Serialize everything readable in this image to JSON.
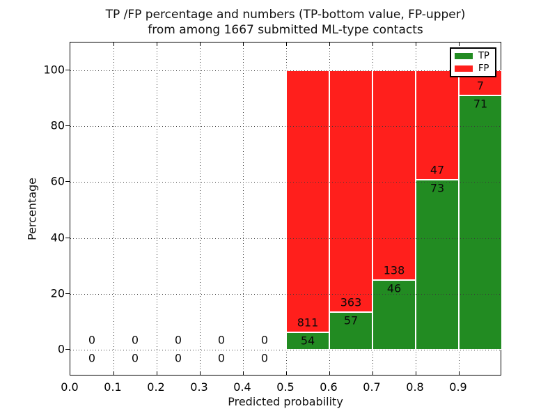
{
  "title": {
    "line1": "TP /FP percentage and numbers (TP-bottom value, FP-upper)",
    "line2": "from among 1667 submitted ML-type contacts"
  },
  "axes": {
    "xlabel": "Predicted probability",
    "ylabel": "Percentage",
    "x_tick_labels": [
      "0.0",
      "0.1",
      "0.2",
      "0.3",
      "0.4",
      "0.5",
      "0.6",
      "0.7",
      "0.8",
      "0.9"
    ],
    "y_tick_labels": [
      "0",
      "20",
      "40",
      "60",
      "80",
      "100"
    ]
  },
  "legend": {
    "items": [
      {
        "label": "TP",
        "color": "#228b22"
      },
      {
        "label": "FP",
        "color": "#ff1f1c"
      }
    ]
  },
  "colors": {
    "tp": "#228b22",
    "fp": "#ff1f1c",
    "grid": "#3a3a3a",
    "text": "#000000",
    "background": "#ffffff"
  },
  "chart_data": {
    "type": "bar",
    "stacked": true,
    "normalized_to_percent": true,
    "title": "TP /FP percentage and numbers (TP-bottom value, FP-upper) from among 1667 submitted ML-type contacts",
    "xlabel": "Predicted probability",
    "ylabel": "Percentage",
    "xlim": [
      0.0,
      1.0
    ],
    "ylim": [
      -9.5,
      110
    ],
    "grid": true,
    "legend_position": "upper right",
    "total_contacts": 1667,
    "bin_width": 0.1,
    "bins": [
      {
        "range": [
          0.0,
          0.1
        ],
        "tp": 0,
        "fp": 0
      },
      {
        "range": [
          0.1,
          0.2
        ],
        "tp": 0,
        "fp": 0
      },
      {
        "range": [
          0.2,
          0.3
        ],
        "tp": 0,
        "fp": 0
      },
      {
        "range": [
          0.3,
          0.4
        ],
        "tp": 0,
        "fp": 0
      },
      {
        "range": [
          0.4,
          0.5
        ],
        "tp": 0,
        "fp": 0
      },
      {
        "range": [
          0.5,
          0.6
        ],
        "tp": 54,
        "fp": 811
      },
      {
        "range": [
          0.6,
          0.7
        ],
        "tp": 57,
        "fp": 363
      },
      {
        "range": [
          0.7,
          0.8
        ],
        "tp": 46,
        "fp": 138
      },
      {
        "range": [
          0.8,
          0.9
        ],
        "tp": 73,
        "fp": 47
      },
      {
        "range": [
          0.9,
          1.0
        ],
        "tp": 71,
        "fp": 7
      }
    ],
    "series": [
      {
        "name": "TP",
        "values": [
          0,
          0,
          0,
          0,
          0,
          54,
          57,
          46,
          73,
          71
        ]
      },
      {
        "name": "FP",
        "values": [
          0,
          0,
          0,
          0,
          0,
          811,
          363,
          138,
          47,
          7
        ]
      }
    ]
  }
}
